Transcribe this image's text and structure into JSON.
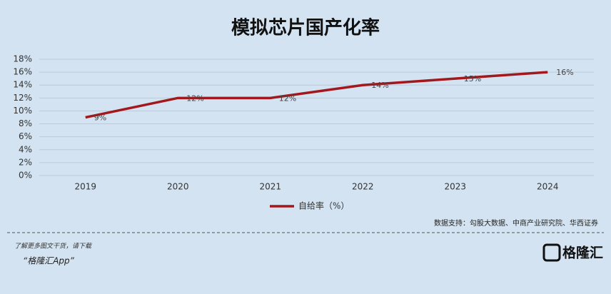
{
  "chart_data": {
    "type": "line",
    "title": "模拟芯片国产化率",
    "categories": [
      "2019",
      "2020",
      "2021",
      "2022",
      "2023",
      "2024"
    ],
    "series": [
      {
        "name": "自给率（%）",
        "color": "#a3181c",
        "values": [
          9,
          12,
          12,
          14,
          15,
          16
        ],
        "value_labels": [
          "9%",
          "12%",
          "12%",
          "14%",
          "15%",
          "16%"
        ]
      }
    ],
    "ylim": [
      0,
      18
    ],
    "yticks": [
      {
        "value": 0,
        "label": "0%"
      },
      {
        "value": 2,
        "label": "2%"
      },
      {
        "value": 4,
        "label": "4%"
      },
      {
        "value": 6,
        "label": "6%"
      },
      {
        "value": 8,
        "label": "8%"
      },
      {
        "value": 10,
        "label": "10%"
      },
      {
        "value": 12,
        "label": "12%"
      },
      {
        "value": 14,
        "label": "14%"
      },
      {
        "value": 16,
        "label": "16%"
      },
      {
        "value": 18,
        "label": "18%"
      }
    ],
    "grid": true,
    "legend": "bottom",
    "source": "数据支持：勾股大数据、中商产业研究院、华西证券"
  },
  "footer": {
    "prompt": "了解更多图文干货，请下载",
    "app": "“格隆汇App”",
    "logo": "格隆汇"
  }
}
